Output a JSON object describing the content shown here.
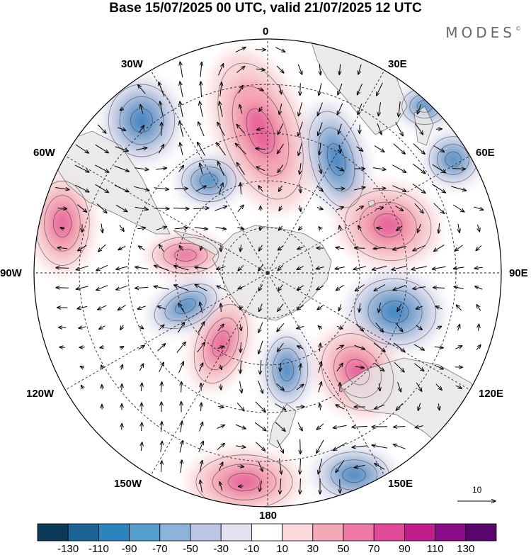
{
  "title": "Base 15/07/2025 00 UTC, valid 21/07/2025 12 UTC",
  "logo": {
    "text": "MODES",
    "mark": "©"
  },
  "map": {
    "projection": "south-polar-stereographic",
    "center": "South Pole",
    "boundary": "circle",
    "graticule": "dashed",
    "longitude_labels": {
      "top": "0",
      "right": "90E",
      "bottom": "180",
      "left": "90W",
      "lon30e": "30E",
      "lon60e": "60E",
      "lon120e": "120E",
      "lon150e": "150E",
      "lon30w": "30W",
      "lon60w": "60W",
      "lon120w": "120W",
      "lon150w": "150W"
    },
    "field": "anomaly with wind vectors",
    "colors": {
      "negative_strong": "#3f86c0",
      "negative_mid": "#8fb0d6",
      "negative_weak": "#dcdcec",
      "positive_weak": "#f8d6d8",
      "positive_mid": "#f4a6b4",
      "positive_strong": "#e8649b",
      "land": "#e6e6e6"
    },
    "reference_vector": {
      "label": "10"
    }
  },
  "colorbar": {
    "colors": [
      "#0e3a5a",
      "#1d6496",
      "#2b84bf",
      "#55a0cf",
      "#8db3da",
      "#bcc5e3",
      "#e3e1f1",
      "#ffffff",
      "#fbd9db",
      "#f5a9b8",
      "#ee7aa5",
      "#e04b97",
      "#bf1f8a",
      "#8a0b86",
      "#5a066f"
    ],
    "ticks": [
      "-130",
      "-110",
      "-90",
      "-70",
      "-50",
      "-30",
      "-10",
      "10",
      "30",
      "50",
      "70",
      "90",
      "110",
      "130"
    ]
  }
}
